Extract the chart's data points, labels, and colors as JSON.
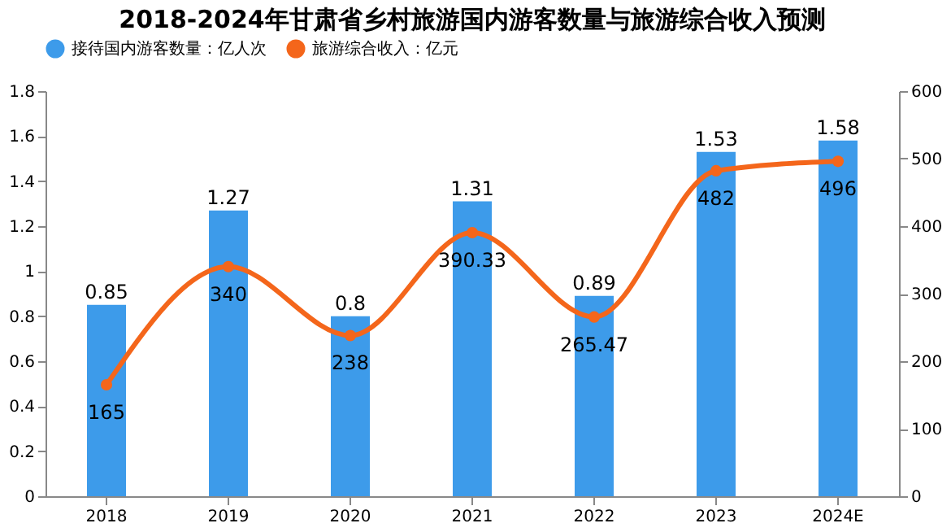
{
  "chart_data": {
    "type": "bar",
    "title": "2018-2024年甘肃省乡村旅游国内游客数量与旅游综合收入预测",
    "categories": [
      "2018",
      "2019",
      "2020",
      "2021",
      "2022",
      "2023",
      "2024E"
    ],
    "series": [
      {
        "name": "接待国内游客数量：亿人次",
        "type": "bar",
        "color": "#3d9bea",
        "values": [
          0.85,
          1.27,
          0.8,
          1.31,
          0.89,
          1.53,
          1.58
        ]
      },
      {
        "name": "旅游综合收入：亿元",
        "type": "line",
        "axis": "y2",
        "color": "#f4661b",
        "values": [
          165,
          340,
          238,
          390.33,
          265.47,
          482,
          496
        ]
      }
    ],
    "ylim": [
      0,
      1.8
    ],
    "yticks": [
      0,
      0.2,
      0.4,
      0.6,
      0.8,
      1,
      1.2,
      1.4,
      1.6,
      1.8
    ],
    "y2lim": [
      0,
      600
    ],
    "y2ticks": [
      0,
      100,
      200,
      300,
      400,
      500,
      600
    ],
    "data_labels": true,
    "legend": "top",
    "grid": false,
    "marker": "circle"
  }
}
